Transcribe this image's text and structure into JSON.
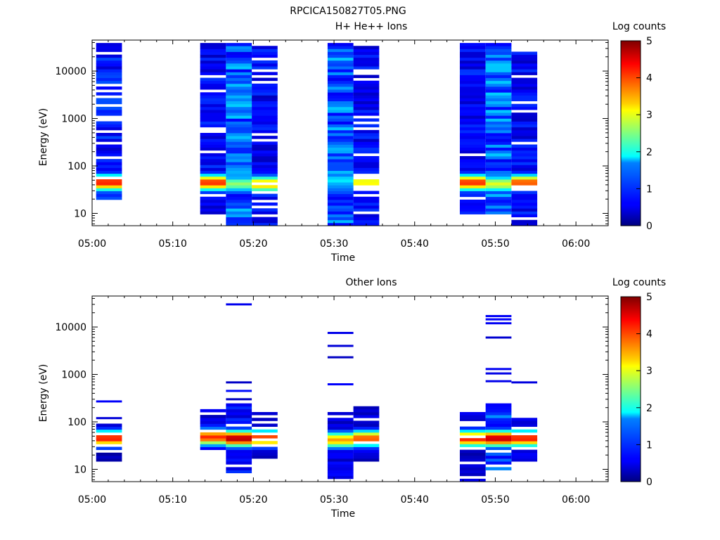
{
  "title": "RPCICA150827T05.PNG",
  "chart_data": [
    {
      "type": "heatmap",
      "title": "H+ He++ Ions",
      "xlabel": "Time",
      "ylabel": "Energy (eV)",
      "yscale": "log",
      "x_ticks": [
        "05:00",
        "05:10",
        "05:20",
        "05:30",
        "05:40",
        "05:50",
        "06:00"
      ],
      "y_ticks": [
        "10",
        "100",
        "1000",
        "10000"
      ],
      "colorbar": {
        "label": "Log counts",
        "ticks": [
          "0",
          "1",
          "2",
          "3",
          "4",
          "5"
        ],
        "range": [
          0,
          5
        ]
      },
      "x_range_minutes": [
        0,
        64
      ],
      "y_range": [
        5.5,
        45000
      ],
      "columns": [
        {
          "t0": 0.5,
          "t1": 3.7,
          "emin": 20,
          "emax": 40000,
          "peak_e": 45,
          "peak_val": 4.3,
          "bg": 0.7,
          "gap": 0.18,
          "seed": 3
        },
        {
          "t0": 13.4,
          "t1": 16.6,
          "emin": 10,
          "emax": 40000,
          "peak_e": 45,
          "peak_val": 4.2,
          "bg": 0.6,
          "gap": 0.12,
          "seed": 7
        },
        {
          "t0": 16.6,
          "t1": 19.8,
          "emin": 5.5,
          "emax": 40000,
          "peak_e": 42,
          "peak_val": 2.6,
          "bg": 1.1,
          "gap": 0.0,
          "seed": 11
        },
        {
          "t0": 19.8,
          "t1": 23.0,
          "emin": 5.5,
          "emax": 40000,
          "peak_e": 42,
          "peak_val": 3.6,
          "bg": 0.6,
          "gap": 0.12,
          "seed": 13
        },
        {
          "t0": 29.2,
          "t1": 32.4,
          "emin": 5.5,
          "emax": 40000,
          "peak_e": 50,
          "peak_val": 1.8,
          "bg": 1.1,
          "gap": 0.0,
          "seed": 17
        },
        {
          "t0": 32.4,
          "t1": 35.6,
          "emin": 5.5,
          "emax": 40000,
          "peak_e": 45,
          "peak_val": 3.2,
          "bg": 0.6,
          "gap": 0.2,
          "seed": 19
        },
        {
          "t0": 45.6,
          "t1": 48.8,
          "emin": 10,
          "emax": 40000,
          "peak_e": 45,
          "peak_val": 4.2,
          "bg": 0.6,
          "gap": 0.1,
          "seed": 23
        },
        {
          "t0": 48.8,
          "t1": 52.0,
          "emin": 10,
          "emax": 40000,
          "peak_e": 42,
          "peak_val": 3.0,
          "bg": 1.1,
          "gap": 0.0,
          "seed": 29
        },
        {
          "t0": 52.0,
          "t1": 55.2,
          "emin": 5.5,
          "emax": 40000,
          "peak_e": 45,
          "peak_val": 4.0,
          "bg": 0.6,
          "gap": 0.15,
          "seed": 31
        }
      ]
    },
    {
      "type": "heatmap",
      "title": "Other Ions",
      "xlabel": "Time",
      "ylabel": "Energy (eV)",
      "yscale": "log",
      "x_ticks": [
        "05:00",
        "05:10",
        "05:20",
        "05:30",
        "05:40",
        "05:50",
        "06:00"
      ],
      "y_ticks": [
        "10",
        "100",
        "1000",
        "10000"
      ],
      "colorbar": {
        "label": "Log counts",
        "ticks": [
          "0",
          "1",
          "2",
          "3",
          "4",
          "5"
        ],
        "range": [
          0,
          5
        ]
      },
      "x_range_minutes": [
        0,
        64
      ],
      "y_range": [
        5.5,
        45000
      ],
      "columns": [
        {
          "t0": 0.5,
          "t1": 3.7,
          "emin": 15,
          "emax": 90,
          "peak_e": 45,
          "peak_val": 4.3,
          "bg": 0.3,
          "gap": 0.3,
          "seed": 41,
          "sparse": [
            120,
            270
          ]
        },
        {
          "t0": 13.4,
          "t1": 16.6,
          "emin": 25,
          "emax": 190,
          "peak_e": 48,
          "peak_val": 4.2,
          "bg": 0.5,
          "gap": 0.15,
          "seed": 43,
          "sparse": []
        },
        {
          "t0": 16.6,
          "t1": 19.8,
          "emin": 9,
          "emax": 230,
          "peak_e": 45,
          "peak_val": 4.8,
          "bg": 0.6,
          "gap": 0.2,
          "seed": 47,
          "sparse": [
            300,
            450,
            680,
            30000
          ]
        },
        {
          "t0": 19.8,
          "t1": 23.0,
          "emin": 15,
          "emax": 170,
          "peak_e": 45,
          "peak_val": 4.2,
          "bg": 0.4,
          "gap": 0.3,
          "seed": 53,
          "sparse": []
        },
        {
          "t0": 29.2,
          "t1": 32.4,
          "emin": 5.5,
          "emax": 170,
          "peak_e": 42,
          "peak_val": 3.6,
          "bg": 0.5,
          "gap": 0.15,
          "seed": 59,
          "sparse": [
            620,
            2300,
            4000,
            7500
          ]
        },
        {
          "t0": 32.4,
          "t1": 35.6,
          "emin": 15,
          "emax": 200,
          "peak_e": 45,
          "peak_val": 4.0,
          "bg": 0.4,
          "gap": 0.2,
          "seed": 61,
          "sparse": []
        },
        {
          "t0": 45.6,
          "t1": 48.8,
          "emin": 5.5,
          "emax": 170,
          "peak_e": 45,
          "peak_val": 4.3,
          "bg": 0.4,
          "gap": 0.2,
          "seed": 67,
          "sparse": [
            110
          ]
        },
        {
          "t0": 48.8,
          "t1": 52.0,
          "emin": 5.5,
          "emax": 260,
          "peak_e": 45,
          "peak_val": 4.7,
          "bg": 0.9,
          "gap": 0.1,
          "seed": 71,
          "sparse": [
            720,
            1050,
            1300,
            6000,
            12000,
            14500,
            17000
          ]
        },
        {
          "t0": 52.0,
          "t1": 55.2,
          "emin": 15,
          "emax": 170,
          "peak_e": 45,
          "peak_val": 4.3,
          "bg": 0.4,
          "gap": 0.25,
          "seed": 73,
          "sparse": [
            680
          ]
        }
      ]
    }
  ]
}
